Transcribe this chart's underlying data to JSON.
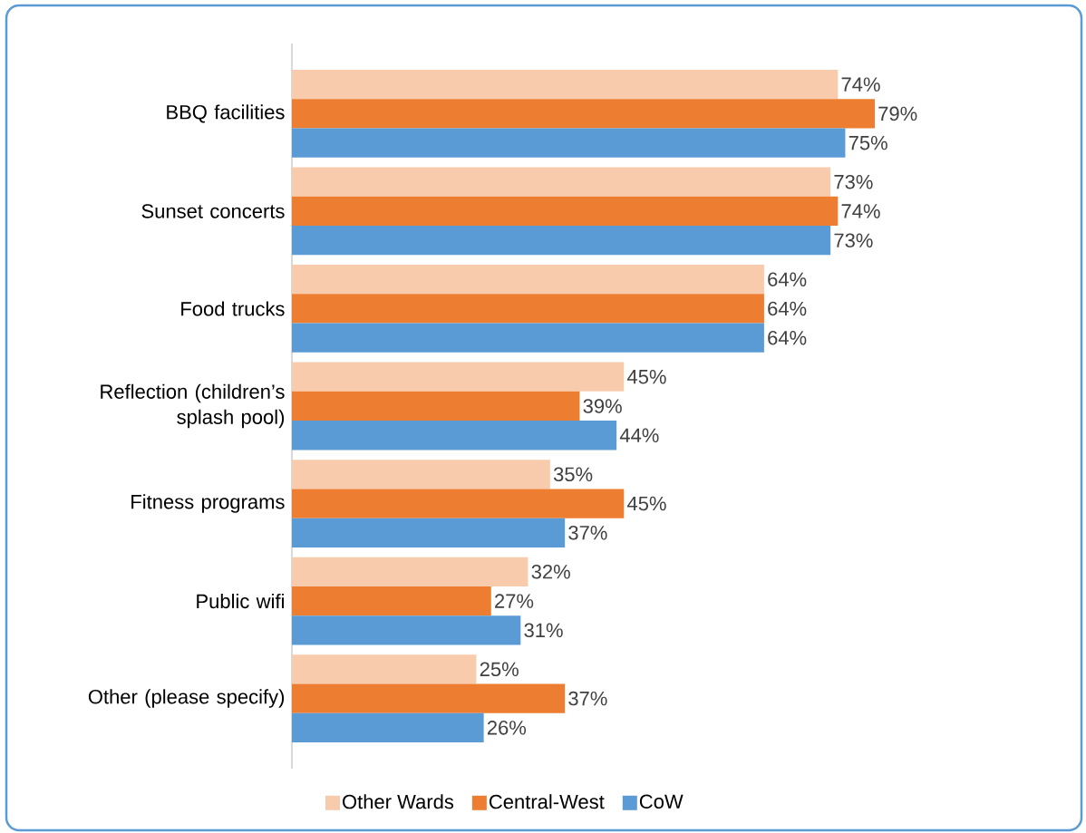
{
  "chart_data": {
    "type": "bar",
    "orientation": "horizontal",
    "categories": [
      "BBQ facilities",
      "Sunset concerts",
      "Food trucks",
      "Reflection (children’s splash pool)",
      "Fitness programs",
      "Public wifi",
      "Other (please specify)"
    ],
    "series": [
      {
        "name": "Other Wards",
        "color": "#f8cbad",
        "values": [
          74,
          73,
          64,
          45,
          35,
          32,
          25
        ],
        "value_labels": [
          "74%",
          "73%",
          "64%",
          "45%",
          "35%",
          "32%",
          "25%"
        ]
      },
      {
        "name": "Central-West",
        "color": "#ed7d31",
        "values": [
          79,
          74,
          64,
          39,
          45,
          27,
          37
        ],
        "value_labels": [
          "79%",
          "74%",
          "64%",
          "39%",
          "45%",
          "27%",
          "37%"
        ]
      },
      {
        "name": "CoW",
        "color": "#5b9bd5",
        "values": [
          75,
          73,
          64,
          44,
          37,
          31,
          26
        ],
        "value_labels": [
          "75%",
          "73%",
          "64%",
          "44%",
          "37%",
          "31%",
          "26%"
        ]
      }
    ],
    "tick_labels": "y",
    "legend": "bottom"
  }
}
